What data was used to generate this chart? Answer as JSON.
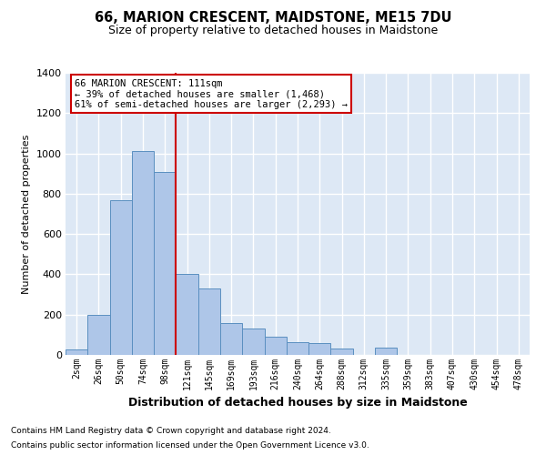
{
  "title": "66, MARION CRESCENT, MAIDSTONE, ME15 7DU",
  "subtitle": "Size of property relative to detached houses in Maidstone",
  "xlabel": "Distribution of detached houses by size in Maidstone",
  "ylabel": "Number of detached properties",
  "categories": [
    "2sqm",
    "26sqm",
    "50sqm",
    "74sqm",
    "98sqm",
    "121sqm",
    "145sqm",
    "169sqm",
    "193sqm",
    "216sqm",
    "240sqm",
    "264sqm",
    "288sqm",
    "312sqm",
    "335sqm",
    "359sqm",
    "383sqm",
    "407sqm",
    "430sqm",
    "454sqm",
    "478sqm"
  ],
  "values": [
    25,
    200,
    770,
    1010,
    910,
    400,
    330,
    160,
    130,
    90,
    65,
    60,
    30,
    0,
    35,
    0,
    0,
    0,
    0,
    0,
    0
  ],
  "bar_color": "#aec6e8",
  "bar_edge_color": "#5a8fc0",
  "bg_color": "#dde8f5",
  "grid_color": "#ffffff",
  "annotation_box_color": "#cc0000",
  "property_line_color": "#cc0000",
  "property_line_x": 4.5,
  "annotation_text": "66 MARION CRESCENT: 111sqm\n← 39% of detached houses are smaller (1,468)\n61% of semi-detached houses are larger (2,293) →",
  "footnote1": "Contains HM Land Registry data © Crown copyright and database right 2024.",
  "footnote2": "Contains public sector information licensed under the Open Government Licence v3.0.",
  "ylim": [
    0,
    1400
  ],
  "yticks": [
    0,
    200,
    400,
    600,
    800,
    1000,
    1200,
    1400
  ],
  "title_fontsize": 10.5,
  "subtitle_fontsize": 9,
  "xlabel_fontsize": 9,
  "ylabel_fontsize": 8,
  "xtick_fontsize": 7,
  "ytick_fontsize": 8,
  "footnote_fontsize": 6.5,
  "annotation_fontsize": 7.5
}
